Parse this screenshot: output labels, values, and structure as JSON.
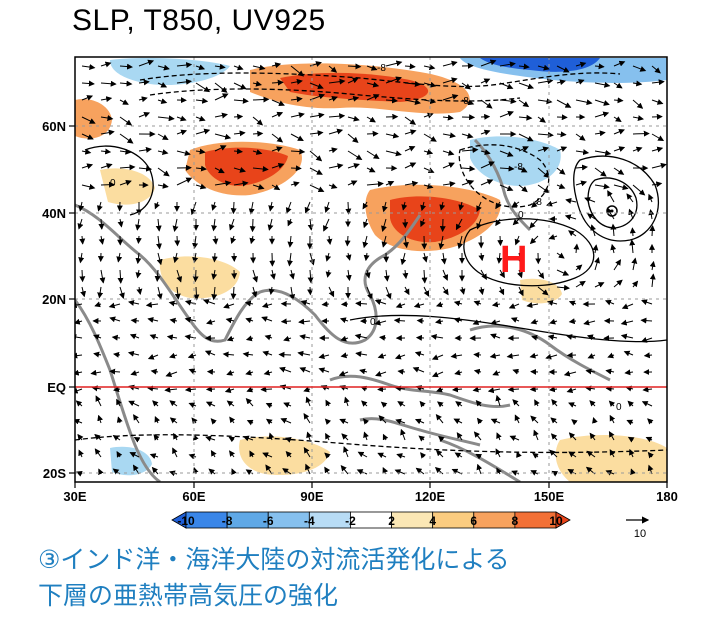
{
  "title": "SLP, T850, UV925",
  "map": {
    "lat_labels": [
      "60N",
      "40N",
      "20N",
      "EQ",
      "20S"
    ],
    "lon_labels": [
      "30E",
      "60E",
      "90E",
      "120E",
      "150E",
      "180"
    ],
    "high_marker": "H",
    "contour_labels": [
      "-8",
      "-8",
      "-8",
      "-8",
      "0",
      "0",
      "0",
      "0"
    ],
    "colors": {
      "warm_strong": "#e8441a",
      "warm_mid": "#f7a25e",
      "warm_light": "#fbdda0",
      "cool_light": "#a9d8f2",
      "cool_mid": "#5fa8e6",
      "cool_strong": "#1f5fd8",
      "equator": "#e02020",
      "high": "#ff1a1a",
      "coast": "#8a8a8a"
    }
  },
  "colorbar": {
    "ticks": [
      "-10",
      "-8",
      "-6",
      "-4",
      "-2",
      "2",
      "4",
      "6",
      "8",
      "10"
    ],
    "colors": [
      "#1f5fd8",
      "#3a86e8",
      "#5fa8e6",
      "#86c0ee",
      "#b8dcf5",
      "#ffffff",
      "#fbe7b5",
      "#fbcc80",
      "#f7a25e",
      "#f27036",
      "#e8441a"
    ]
  },
  "vector_ref": {
    "value": "10"
  },
  "caption": {
    "line1": "③インド洋・海洋大陸の対流活発化による",
    "line2": "下層の亜熱帯高気圧の強化"
  }
}
